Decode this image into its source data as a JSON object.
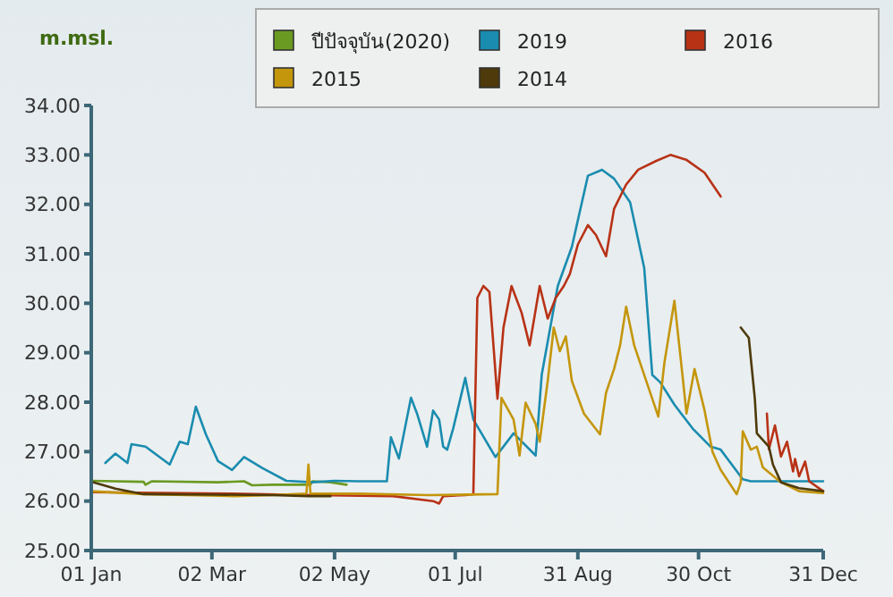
{
  "chart_data": {
    "type": "line",
    "ylabel": "m.msl.",
    "legend": "top right",
    "grid": false,
    "xlim": [
      "--01-01",
      "--12-31"
    ],
    "xticks": [
      {
        "value": "--01-01",
        "label": "01 Jan"
      },
      {
        "value": "--03-02",
        "label": "02 Mar"
      },
      {
        "value": "--05-02",
        "label": "02 May"
      },
      {
        "value": "--07-01",
        "label": "01 Jul"
      },
      {
        "value": "--08-31",
        "label": "31 Aug"
      },
      {
        "value": "--10-30",
        "label": "30 Oct"
      },
      {
        "value": "--12-31",
        "label": "31 Dec"
      }
    ],
    "ylim": [
      25,
      34
    ],
    "yticks": [
      {
        "value": 25,
        "label": "25.00"
      },
      {
        "value": 26,
        "label": "26.00"
      },
      {
        "value": 27,
        "label": "27.00"
      },
      {
        "value": 28,
        "label": "28.00"
      },
      {
        "value": 29,
        "label": "29.00"
      },
      {
        "value": 30,
        "label": "30.00"
      },
      {
        "value": 31,
        "label": "31.00"
      },
      {
        "value": 32,
        "label": "32.00"
      },
      {
        "value": 33,
        "label": "33.00"
      },
      {
        "value": 34,
        "label": "34.00"
      }
    ],
    "series": [
      {
        "name": "ปีปัจจุบัน(2020)",
        "color": "#6b9a22",
        "x": [
          "--01-01",
          "--01-27",
          "--01-28",
          "--01-31",
          "--03-05",
          "--03-18",
          "--03-22",
          "--04-01",
          "--04-20",
          "--04-21",
          "--04-30",
          "--05-08"
        ],
        "values": [
          26.41,
          26.39,
          26.33,
          26.4,
          26.38,
          26.4,
          26.32,
          26.33,
          26.33,
          26.4,
          26.38,
          26.33
        ]
      },
      {
        "name": "2019",
        "color": "#1a8caf",
        "x": [
          "--01-08",
          "--01-13",
          "--01-19",
          "--01-21",
          "--01-28",
          "--02-09",
          "--02-14",
          "--02-18",
          "--02-22",
          "--02-27",
          "--03-05",
          "--03-12",
          "--03-18",
          "--03-27",
          "--04-08",
          "--04-21",
          "--05-02",
          "--05-14",
          "--05-28",
          "--05-30",
          "--06-03",
          "--06-09",
          "--06-12",
          "--06-17",
          "--06-20",
          "--06-23",
          "--06-25",
          "--06-27",
          "--06-30",
          "--07-06",
          "--07-10",
          "--07-21",
          "--07-30",
          "--08-10",
          "--08-13",
          "--08-21",
          "--08-28",
          "--09-05",
          "--09-12",
          "--09-18",
          "--09-26",
          "--10-03",
          "--10-07",
          "--10-11",
          "--10-18",
          "--10-27",
          "--11-05",
          "--11-10",
          "--11-21",
          "--11-25",
          "--12-31"
        ],
        "values": [
          26.77,
          26.96,
          26.77,
          27.15,
          27.1,
          26.74,
          27.2,
          27.15,
          27.91,
          27.35,
          26.81,
          26.63,
          26.89,
          26.67,
          26.41,
          26.38,
          26.41,
          26.4,
          26.4,
          27.29,
          26.86,
          28.09,
          27.77,
          27.1,
          27.83,
          27.65,
          27.1,
          27.04,
          27.47,
          28.49,
          27.65,
          26.89,
          27.37,
          26.92,
          28.55,
          30.35,
          31.14,
          32.58,
          32.7,
          32.52,
          32.04,
          30.71,
          28.55,
          28.4,
          27.95,
          27.47,
          27.1,
          27.04,
          26.44,
          26.4,
          26.4
        ]
      },
      {
        "name": "2016",
        "color": "#b83216",
        "x": [
          "--01-01",
          "--03-12",
          "--04-21",
          "--05-31",
          "--06-20",
          "--06-23",
          "--06-25",
          "--07-06",
          "--07-10",
          "--07-12",
          "--07-15",
          "--07-18",
          "--07-22",
          "--07-25",
          "--07-29",
          "--08-03",
          "--08-07",
          "--08-12",
          "--08-16",
          "--08-20",
          "--08-24",
          "--08-27",
          "--08-31",
          "--09-05",
          "--09-09",
          "--09-14",
          "--09-18",
          "--09-24",
          "--09-30",
          "--10-09",
          "--10-16",
          "--10-24",
          "--11-02",
          "--11-10",
          "--11-17",
          "--12-03",
          "--12-04",
          "--12-07",
          "--12-10",
          "--12-13",
          "--12-16",
          "--12-17",
          "--12-19",
          "--12-22",
          "--12-24",
          "--12-31"
        ],
        "values": [
          26.18,
          26.15,
          26.12,
          26.1,
          26.0,
          25.95,
          26.1,
          26.12,
          26.14,
          30.11,
          30.35,
          30.23,
          28.07,
          29.51,
          30.35,
          29.81,
          29.15,
          30.35,
          29.69,
          30.11,
          30.35,
          30.59,
          31.19,
          31.58,
          31.38,
          30.95,
          31.91,
          32.4,
          32.7,
          32.88,
          33.0,
          32.9,
          32.64,
          32.16,
          null,
          27.77,
          27.05,
          27.53,
          26.9,
          27.2,
          26.6,
          26.85,
          26.5,
          26.8,
          26.4,
          26.2
        ]
      },
      {
        "name": "2015",
        "color": "#c4960c",
        "x": [
          "--01-01",
          "--01-27",
          "--03-13",
          "--04-01",
          "--04-18",
          "--04-19",
          "--04-20",
          "--05-14",
          "--06-18",
          "--07-22",
          "--07-24",
          "--07-30",
          "--08-02",
          "--08-05",
          "--08-10",
          "--08-12",
          "--08-16",
          "--08-19",
          "--08-22",
          "--08-25",
          "--08-28",
          "--09-03",
          "--09-11",
          "--09-14",
          "--09-18",
          "--09-21",
          "--09-24",
          "--09-28",
          "--10-03",
          "--10-10",
          "--10-13",
          "--10-18",
          "--10-22",
          "--10-24",
          "--10-28",
          "--11-02",
          "--11-06",
          "--11-10",
          "--11-18",
          "--11-20",
          "--11-21",
          "--11-25",
          "--11-28",
          "--12-01",
          "--12-10",
          "--12-19",
          "--12-31"
        ],
        "values": [
          26.2,
          26.14,
          26.1,
          26.12,
          26.15,
          26.74,
          26.15,
          26.15,
          26.12,
          26.14,
          28.09,
          27.65,
          26.92,
          27.99,
          27.56,
          27.2,
          28.43,
          29.51,
          29.03,
          29.33,
          28.43,
          27.77,
          27.35,
          28.19,
          28.67,
          29.15,
          29.93,
          29.15,
          28.55,
          27.71,
          28.79,
          30.05,
          28.55,
          27.77,
          28.67,
          27.83,
          26.99,
          26.63,
          26.14,
          26.38,
          27.41,
          27.04,
          27.1,
          26.68,
          26.38,
          26.2,
          26.16
        ]
      },
      {
        "name": "2014",
        "color": "#4e3a0a",
        "x": [
          "--01-01",
          "--01-13",
          "--01-27",
          "--03-05",
          "--04-01",
          "--04-19",
          "--04-30",
          "--07-01",
          "--11-20",
          "--11-24",
          "--11-27",
          "--11-28",
          "--12-04",
          "--12-06",
          "--12-10",
          "--12-19",
          "--12-31"
        ],
        "values": [
          26.39,
          26.25,
          26.14,
          26.13,
          26.12,
          26.1,
          26.1,
          null,
          29.51,
          29.3,
          28.07,
          27.37,
          27.1,
          26.74,
          26.38,
          26.26,
          26.2
        ]
      }
    ]
  }
}
